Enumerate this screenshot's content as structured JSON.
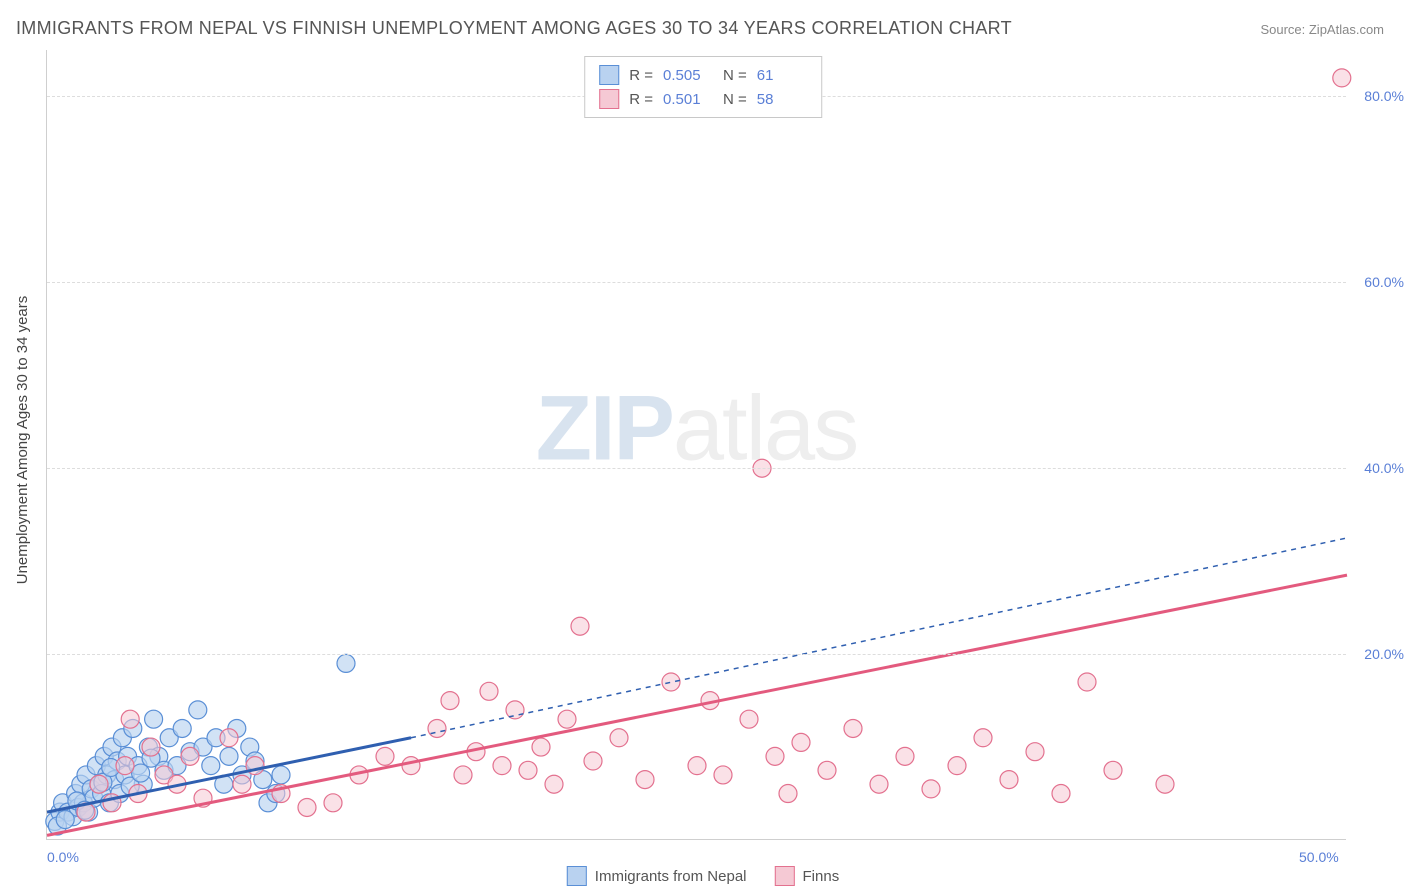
{
  "title": "IMMIGRANTS FROM NEPAL VS FINNISH UNEMPLOYMENT AMONG AGES 30 TO 34 YEARS CORRELATION CHART",
  "source": "Source: ZipAtlas.com",
  "y_axis_label": "Unemployment Among Ages 30 to 34 years",
  "watermark_zip": "ZIP",
  "watermark_atlas": "atlas",
  "chart": {
    "type": "scatter",
    "background_color": "#ffffff",
    "grid_color": "#dddddd",
    "axis_color": "#cfcfcf",
    "value_color": "#5a7fd6",
    "label_color": "#555555",
    "xlim": [
      0,
      50
    ],
    "ylim": [
      0,
      85
    ],
    "x_ticks": [
      {
        "v": 0,
        "label": "0.0%"
      },
      {
        "v": 50,
        "label": "50.0%"
      }
    ],
    "y_ticks": [
      {
        "v": 20,
        "label": "20.0%"
      },
      {
        "v": 40,
        "label": "40.0%"
      },
      {
        "v": 60,
        "label": "60.0%"
      },
      {
        "v": 80,
        "label": "80.0%"
      }
    ],
    "series": [
      {
        "name": "Immigrants from Nepal",
        "marker_fill": "#b9d2f0",
        "marker_stroke": "#5a8fd6",
        "marker_opacity": 0.65,
        "marker_radius": 9,
        "line_color": "#2f5fb0",
        "line_width": 3,
        "line_dash": "none",
        "line_dash_ext": "5,5",
        "R_label": "R =",
        "R": "0.505",
        "N_label": "N =",
        "N": "61",
        "regression": {
          "x1": 0,
          "y1": 3,
          "x2_solid": 14,
          "y2_solid": 11,
          "x2": 50,
          "y2": 32.5
        },
        "points": [
          [
            0.3,
            2
          ],
          [
            0.5,
            3
          ],
          [
            0.6,
            4
          ],
          [
            0.8,
            3
          ],
          [
            1.0,
            2.5
          ],
          [
            1.1,
            5
          ],
          [
            1.2,
            3.5
          ],
          [
            1.3,
            6
          ],
          [
            1.4,
            4
          ],
          [
            1.5,
            7
          ],
          [
            1.6,
            3
          ],
          [
            1.7,
            5.5
          ],
          [
            1.8,
            4.5
          ],
          [
            1.9,
            8
          ],
          [
            2.0,
            6
          ],
          [
            2.1,
            5
          ],
          [
            2.2,
            9
          ],
          [
            2.3,
            7
          ],
          [
            2.4,
            4
          ],
          [
            2.5,
            10
          ],
          [
            2.6,
            6.5
          ],
          [
            2.7,
            8.5
          ],
          [
            2.8,
            5
          ],
          [
            2.9,
            11
          ],
          [
            3.0,
            7
          ],
          [
            3.1,
            9
          ],
          [
            3.3,
            12
          ],
          [
            3.5,
            8
          ],
          [
            3.7,
            6
          ],
          [
            3.9,
            10
          ],
          [
            4.1,
            13
          ],
          [
            4.3,
            9
          ],
          [
            4.5,
            7.5
          ],
          [
            4.7,
            11
          ],
          [
            5.0,
            8
          ],
          [
            5.2,
            12
          ],
          [
            5.5,
            9.5
          ],
          [
            5.8,
            14
          ],
          [
            6.0,
            10
          ],
          [
            6.3,
            8
          ],
          [
            6.5,
            11
          ],
          [
            6.8,
            6
          ],
          [
            7.0,
            9
          ],
          [
            7.3,
            12
          ],
          [
            7.5,
            7
          ],
          [
            7.8,
            10
          ],
          [
            8.0,
            8.5
          ],
          [
            8.3,
            6.5
          ],
          [
            8.5,
            4
          ],
          [
            8.8,
            5
          ],
          [
            9.0,
            7
          ],
          [
            0.4,
            1.5
          ],
          [
            0.7,
            2.2
          ],
          [
            1.15,
            4.2
          ],
          [
            1.45,
            3.2
          ],
          [
            2.15,
            6.2
          ],
          [
            2.45,
            7.8
          ],
          [
            3.2,
            5.8
          ],
          [
            3.6,
            7.2
          ],
          [
            4.0,
            8.8
          ],
          [
            11.5,
            19
          ]
        ]
      },
      {
        "name": "Finns",
        "marker_fill": "#f5c9d4",
        "marker_stroke": "#e3718f",
        "marker_opacity": 0.55,
        "marker_radius": 9,
        "line_color": "#e35a7e",
        "line_width": 3,
        "line_dash": "none",
        "R_label": "R =",
        "R": "0.501",
        "N_label": "N =",
        "N": "58",
        "regression": {
          "x1": 0,
          "y1": 0.5,
          "x2": 50,
          "y2": 28.5
        },
        "points": [
          [
            1.5,
            3
          ],
          [
            2.0,
            6
          ],
          [
            2.5,
            4
          ],
          [
            3.0,
            8
          ],
          [
            3.5,
            5
          ],
          [
            4.0,
            10
          ],
          [
            4.5,
            7
          ],
          [
            5.0,
            6
          ],
          [
            5.5,
            9
          ],
          [
            6.0,
            4.5
          ],
          [
            7.0,
            11
          ],
          [
            7.5,
            6
          ],
          [
            8.0,
            8
          ],
          [
            9.0,
            5
          ],
          [
            10.0,
            3.5
          ],
          [
            11.0,
            4
          ],
          [
            12.0,
            7
          ],
          [
            13.0,
            9
          ],
          [
            14.0,
            8
          ],
          [
            15.0,
            12
          ],
          [
            15.5,
            15
          ],
          [
            16.0,
            7
          ],
          [
            16.5,
            9.5
          ],
          [
            17.0,
            16
          ],
          [
            17.5,
            8
          ],
          [
            18.0,
            14
          ],
          [
            18.5,
            7.5
          ],
          [
            19.0,
            10
          ],
          [
            19.5,
            6
          ],
          [
            20.0,
            13
          ],
          [
            20.5,
            23
          ],
          [
            21.0,
            8.5
          ],
          [
            22.0,
            11
          ],
          [
            23.0,
            6.5
          ],
          [
            24.0,
            17
          ],
          [
            25.0,
            8
          ],
          [
            25.5,
            15
          ],
          [
            26.0,
            7
          ],
          [
            27.0,
            13
          ],
          [
            28.0,
            9
          ],
          [
            28.5,
            5
          ],
          [
            29.0,
            10.5
          ],
          [
            30.0,
            7.5
          ],
          [
            31.0,
            12
          ],
          [
            32.0,
            6
          ],
          [
            33.0,
            9
          ],
          [
            34.0,
            5.5
          ],
          [
            35.0,
            8
          ],
          [
            36.0,
            11
          ],
          [
            37.0,
            6.5
          ],
          [
            38.0,
            9.5
          ],
          [
            39.0,
            5
          ],
          [
            40.0,
            17
          ],
          [
            41.0,
            7.5
          ],
          [
            43.0,
            6
          ],
          [
            27.5,
            40
          ],
          [
            49.8,
            82
          ],
          [
            3.2,
            13
          ]
        ]
      }
    ],
    "bottom_legend": [
      {
        "label": "Immigrants from Nepal",
        "fill": "#b9d2f0",
        "stroke": "#5a8fd6"
      },
      {
        "label": "Finns",
        "fill": "#f5c9d4",
        "stroke": "#e3718f"
      }
    ]
  }
}
